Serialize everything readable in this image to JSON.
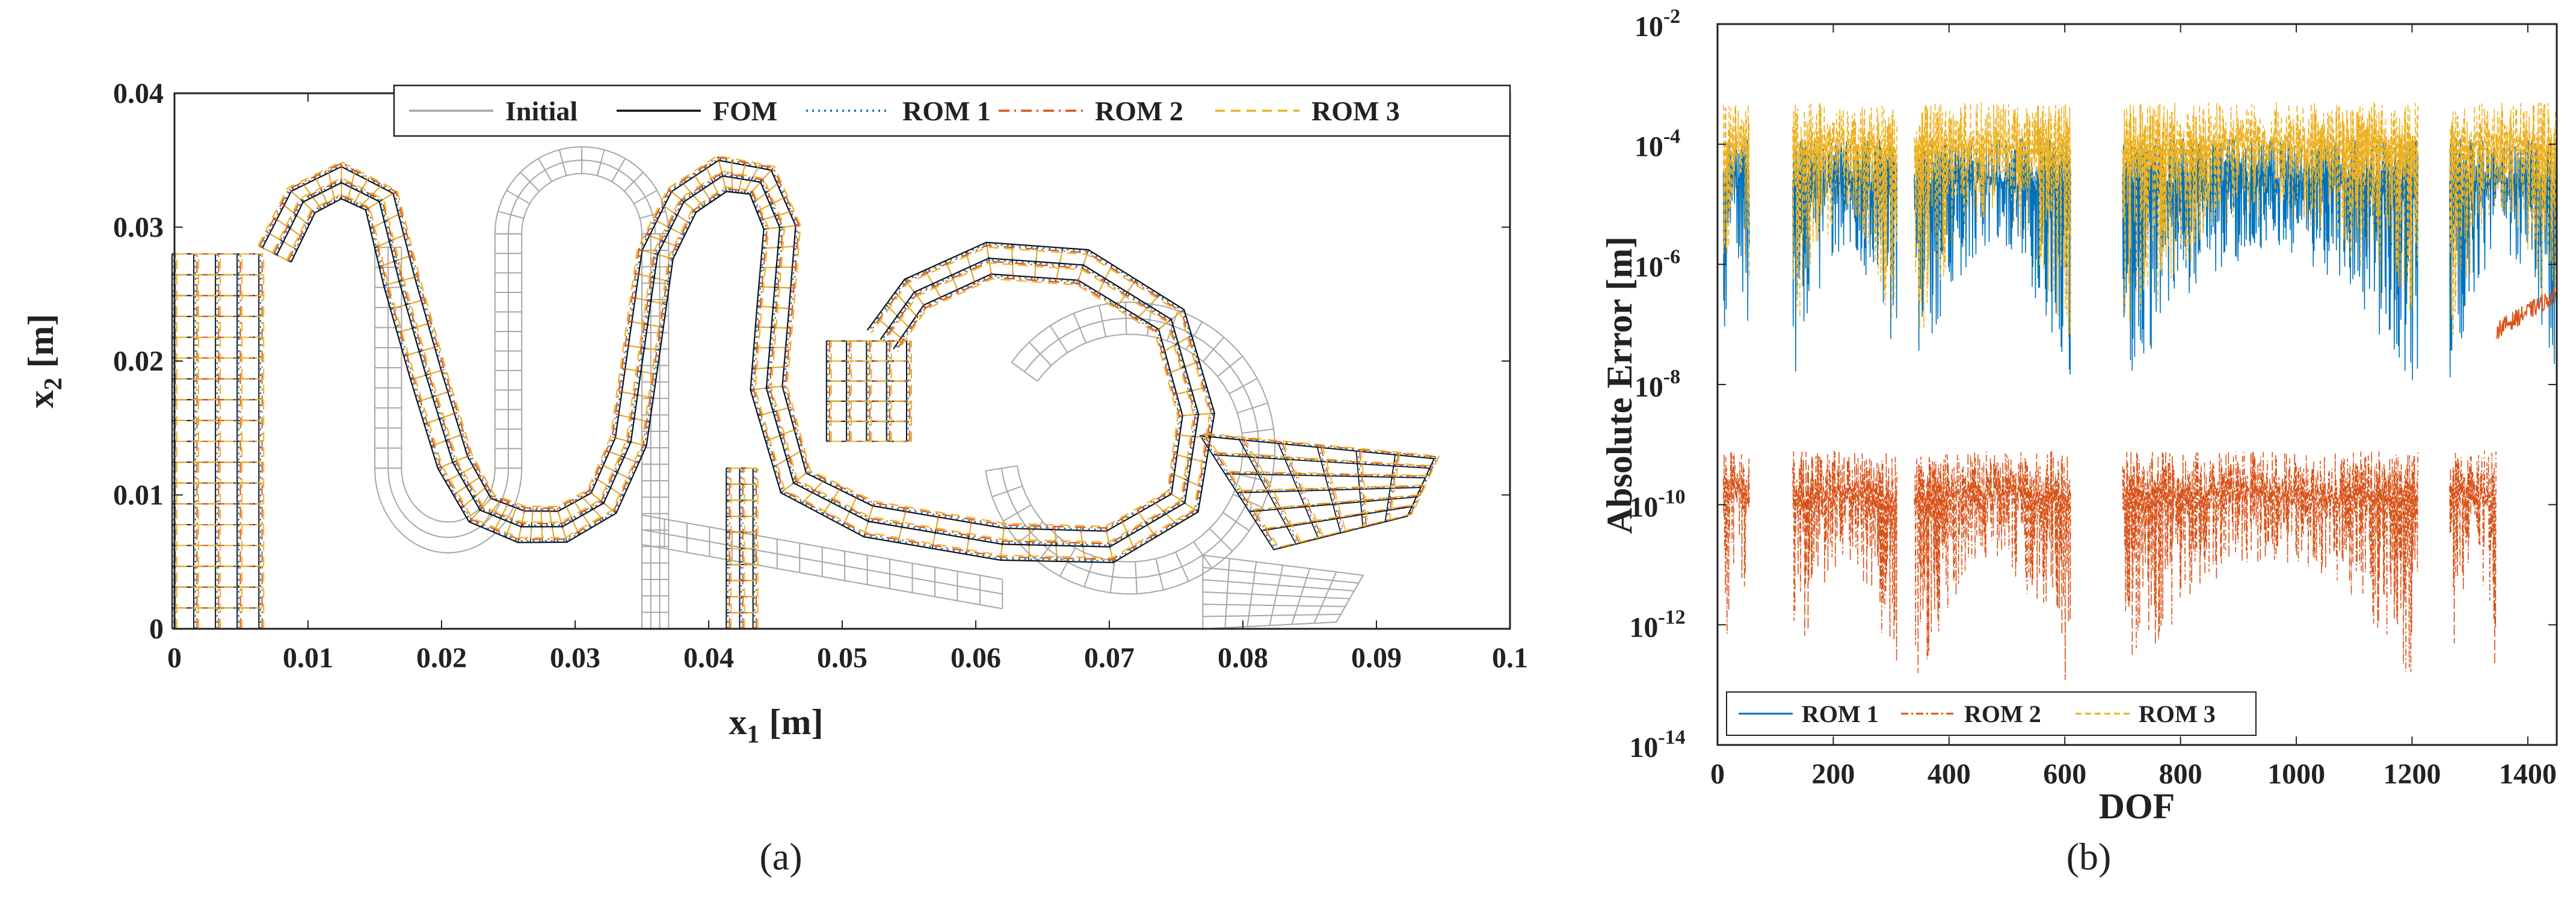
{
  "chart_data": [
    {
      "panel": "(a)",
      "type": "line",
      "title": "",
      "xlabel": "x",
      "xlabel_sub": "1",
      "xlabel_unit": "[m]",
      "ylabel": "x",
      "ylabel_sub": "2",
      "ylabel_unit": "[m]",
      "xlim": [
        0,
        0.1
      ],
      "ylim": [
        0,
        0.04
      ],
      "xticks": [
        "0",
        "0.01",
        "0.02",
        "0.03",
        "0.04",
        "0.05",
        "0.06",
        "0.07",
        "0.08",
        "0.09",
        "0.1"
      ],
      "xtick_values": [
        0,
        0.01,
        0.02,
        0.03,
        0.04,
        0.05,
        0.06,
        0.07,
        0.08,
        0.09,
        0.1
      ],
      "yticks": [
        "0",
        "0.01",
        "0.02",
        "0.03",
        "0.04"
      ],
      "ytick_values": [
        0,
        0.01,
        0.02,
        0.03,
        0.04
      ],
      "legend_position": "top-right",
      "series": [
        {
          "name": "Initial",
          "color": "#a6a6a6",
          "dash": "solid"
        },
        {
          "name": "FOM",
          "color": "#111111",
          "dash": "solid"
        },
        {
          "name": "ROM 1",
          "color": "#0072bd",
          "dash": "dotted"
        },
        {
          "name": "ROM 2",
          "color": "#d95319",
          "dash": "dashdot"
        },
        {
          "name": "ROM 3",
          "color": "#edb120",
          "dash": "dashed"
        }
      ],
      "initial_mesh": {
        "left_block": {
          "x": [
            0,
            0.0065
          ],
          "y": [
            0,
            0.028
          ]
        },
        "straight_bar": {
          "x": [
            0.035,
            0.037
          ],
          "y": [
            0,
            0.033
          ]
        },
        "arm": [
          [
            0.035,
            0.0085
          ],
          [
            0.062,
            0.0037
          ]
        ],
        "end_block": [
          [
            0.077,
            0.0055
          ],
          [
            0.089,
            0.004
          ],
          [
            0.087,
            0.0005
          ],
          [
            0.077,
            0.0
          ]
        ]
      },
      "deformed_centerline": [
        [
          0.0075,
          0.028
        ],
        [
          0.0095,
          0.032
        ],
        [
          0.0125,
          0.0335
        ],
        [
          0.0155,
          0.032
        ],
        [
          0.017,
          0.026
        ],
        [
          0.019,
          0.019
        ],
        [
          0.021,
          0.0125
        ],
        [
          0.023,
          0.009
        ],
        [
          0.026,
          0.0078
        ],
        [
          0.029,
          0.0078
        ],
        [
          0.032,
          0.0095
        ],
        [
          0.034,
          0.014
        ],
        [
          0.035,
          0.021
        ],
        [
          0.036,
          0.028
        ],
        [
          0.038,
          0.032
        ],
        [
          0.041,
          0.034
        ],
        [
          0.044,
          0.0335
        ],
        [
          0.0455,
          0.03
        ],
        [
          0.045,
          0.024
        ],
        [
          0.0445,
          0.018
        ],
        [
          0.0465,
          0.011
        ],
        [
          0.052,
          0.0082
        ],
        [
          0.062,
          0.0065
        ],
        [
          0.07,
          0.0063
        ],
        [
          0.0755,
          0.0095
        ],
        [
          0.0765,
          0.016
        ],
        [
          0.0745,
          0.023
        ],
        [
          0.068,
          0.027
        ],
        [
          0.061,
          0.0275
        ],
        [
          0.0555,
          0.025
        ],
        [
          0.053,
          0.0215
        ]
      ],
      "deformed_tip": [
        [
          0.077,
          0.0145
        ],
        [
          0.0945,
          0.0128
        ],
        [
          0.0925,
          0.0085
        ],
        [
          0.0825,
          0.006
        ]
      ],
      "small_block": {
        "x": [
          0.049,
          0.055
        ],
        "y": [
          0.014,
          0.0215
        ]
      },
      "lower_bar": {
        "x": [
          0.0415,
          0.0435
        ],
        "y": [
          0,
          0.012
        ]
      }
    },
    {
      "panel": "(b)",
      "type": "line",
      "title": "",
      "xlabel": "DOF",
      "ylabel": "Absolute Error [m]",
      "yscale": "log",
      "xlim": [
        0,
        1450
      ],
      "ylim_exponent": [
        -14,
        -2
      ],
      "xticks": [
        "0",
        "200",
        "400",
        "600",
        "800",
        "1000",
        "1200",
        "1400"
      ],
      "xtick_values": [
        0,
        200,
        400,
        600,
        800,
        1000,
        1200,
        1400
      ],
      "ytick_base": "10",
      "ytick_exponents": [
        "-14",
        "-12",
        "-10",
        "-8",
        "-6",
        "-4",
        "-2"
      ],
      "ytick_values": [
        -14,
        -12,
        -10,
        -8,
        -6,
        -4,
        -2
      ],
      "legend_position": "bottom-left",
      "series": [
        {
          "name": "ROM 1",
          "color": "#0072bd",
          "dash": "solid",
          "segments": [
            [
              10,
              55
            ],
            [
              130,
              310
            ],
            [
              340,
              610
            ],
            [
              700,
              1210
            ],
            [
              1265,
              1450
            ]
          ],
          "typical_log10": -4.3,
          "min_log10": -8.1
        },
        {
          "name": "ROM 2",
          "color": "#d95319",
          "dash": "dashdot",
          "segments": [
            [
              10,
              55
            ],
            [
              130,
              310
            ],
            [
              340,
              610
            ],
            [
              700,
              1210
            ],
            [
              1265,
              1345
            ]
          ],
          "typical_log10": -9.5,
          "min_log10": -13.2,
          "tail_segment": [
            1345,
            1450
          ],
          "tail_log10": -6.6
        },
        {
          "name": "ROM 3",
          "color": "#edb120",
          "dash": "dashed",
          "segments": [
            [
              10,
              55
            ],
            [
              130,
              310
            ],
            [
              340,
              610
            ],
            [
              700,
              1210
            ],
            [
              1265,
              1450
            ]
          ],
          "typical_log10": -3.7,
          "min_log10": -7.5
        }
      ]
    }
  ]
}
